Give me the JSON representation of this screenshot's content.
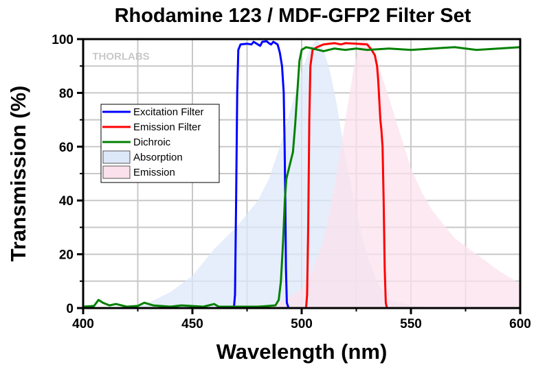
{
  "chart_data": {
    "type": "line",
    "title": "Rhodamine 123 / MDF-GFP2 Filter Set",
    "xlabel": "Wavelength (nm)",
    "ylabel": "Transmission (%)",
    "xlim": [
      400,
      600
    ],
    "ylim": [
      0,
      100
    ],
    "xticks": [
      400,
      450,
      500,
      550,
      600
    ],
    "yticks": [
      0,
      20,
      40,
      60,
      80,
      100
    ],
    "grid": true,
    "legend_position": "left",
    "watermark": "THORLABS",
    "series": [
      {
        "name": "Excitation Filter",
        "kind": "line",
        "color": "#0000ff",
        "points": [
          [
            400,
            0
          ],
          [
            469,
            0
          ],
          [
            469.5,
            5
          ],
          [
            470,
            40
          ],
          [
            470.5,
            80
          ],
          [
            471,
            96
          ],
          [
            472,
            98
          ],
          [
            475,
            98.3
          ],
          [
            477,
            98
          ],
          [
            478,
            99
          ],
          [
            480,
            98
          ],
          [
            481,
            97.5
          ],
          [
            482,
            99
          ],
          [
            484,
            99.2
          ],
          [
            485,
            98.5
          ],
          [
            486,
            98
          ],
          [
            487,
            99
          ],
          [
            489,
            98
          ],
          [
            490,
            95
          ],
          [
            491,
            90
          ],
          [
            491.8,
            80
          ],
          [
            492.2,
            60
          ],
          [
            492.5,
            40
          ],
          [
            492.8,
            15
          ],
          [
            493.2,
            2
          ],
          [
            494,
            0
          ],
          [
            600,
            0
          ]
        ]
      },
      {
        "name": "Emission Filter",
        "kind": "line",
        "color": "#ff0000",
        "points": [
          [
            400,
            0
          ],
          [
            502,
            0
          ],
          [
            502.5,
            5
          ],
          [
            503,
            30
          ],
          [
            503.5,
            70
          ],
          [
            504,
            90
          ],
          [
            505,
            96
          ],
          [
            507,
            97
          ],
          [
            510,
            98
          ],
          [
            515,
            98.5
          ],
          [
            518,
            98
          ],
          [
            520,
            98.5
          ],
          [
            525,
            98.3
          ],
          [
            530,
            98
          ],
          [
            532,
            96
          ],
          [
            533.5,
            94
          ],
          [
            534.5,
            90
          ],
          [
            535,
            85
          ],
          [
            536,
            70
          ],
          [
            536.5,
            66
          ],
          [
            537,
            60
          ],
          [
            537.5,
            40
          ],
          [
            538,
            15
          ],
          [
            538.5,
            2
          ],
          [
            539,
            0
          ],
          [
            600,
            0
          ]
        ]
      },
      {
        "name": "Dichroic",
        "kind": "line",
        "color": "#008000",
        "points": [
          [
            400,
            0.5
          ],
          [
            405,
            0.8
          ],
          [
            407,
            3
          ],
          [
            409,
            2
          ],
          [
            412,
            1
          ],
          [
            415,
            1.5
          ],
          [
            420,
            0.5
          ],
          [
            425,
            0.8
          ],
          [
            428,
            2
          ],
          [
            432,
            1
          ],
          [
            440,
            0.5
          ],
          [
            445,
            1
          ],
          [
            455,
            0.5
          ],
          [
            460,
            1.5
          ],
          [
            462,
            0.5
          ],
          [
            470,
            0.5
          ],
          [
            480,
            0.5
          ],
          [
            485,
            0.8
          ],
          [
            488,
            1
          ],
          [
            489.5,
            3
          ],
          [
            490.5,
            10
          ],
          [
            491.5,
            25
          ],
          [
            492.3,
            40
          ],
          [
            493,
            48
          ],
          [
            494.5,
            53
          ],
          [
            496,
            58
          ],
          [
            497,
            68
          ],
          [
            498,
            80
          ],
          [
            499,
            92
          ],
          [
            500,
            96
          ],
          [
            502,
            97
          ],
          [
            505,
            96.5
          ],
          [
            510,
            95.5
          ],
          [
            515,
            96.5
          ],
          [
            520,
            96
          ],
          [
            525,
            96.5
          ],
          [
            530,
            96
          ],
          [
            540,
            96.5
          ],
          [
            550,
            96
          ],
          [
            560,
            96.5
          ],
          [
            570,
            97
          ],
          [
            580,
            96
          ],
          [
            590,
            96.5
          ],
          [
            600,
            97
          ]
        ]
      },
      {
        "name": "Absorption",
        "kind": "area",
        "color": "#dce8f8",
        "points": [
          [
            400,
            0
          ],
          [
            420,
            0.5
          ],
          [
            430,
            2
          ],
          [
            440,
            6
          ],
          [
            450,
            12
          ],
          [
            460,
            22
          ],
          [
            470,
            30
          ],
          [
            475,
            35
          ],
          [
            480,
            40
          ],
          [
            485,
            48
          ],
          [
            490,
            60
          ],
          [
            495,
            74
          ],
          [
            500,
            88
          ],
          [
            504,
            97
          ],
          [
            507,
            100
          ],
          [
            510,
            96
          ],
          [
            513,
            88
          ],
          [
            516,
            76
          ],
          [
            520,
            56
          ],
          [
            525,
            36
          ],
          [
            530,
            19
          ],
          [
            535,
            9
          ],
          [
            540,
            3
          ],
          [
            550,
            1
          ],
          [
            560,
            0
          ]
        ]
      },
      {
        "name": "Emission",
        "kind": "area",
        "color": "#fbe1ec",
        "points": [
          [
            480,
            0
          ],
          [
            490,
            2
          ],
          [
            500,
            7
          ],
          [
            505,
            14
          ],
          [
            510,
            25
          ],
          [
            515,
            45
          ],
          [
            520,
            70
          ],
          [
            524,
            90
          ],
          [
            527,
            99
          ],
          [
            529,
            100
          ],
          [
            532,
            97
          ],
          [
            536,
            88
          ],
          [
            540,
            78
          ],
          [
            545,
            65
          ],
          [
            550,
            52
          ],
          [
            555,
            43
          ],
          [
            560,
            36
          ],
          [
            570,
            26
          ],
          [
            580,
            20
          ],
          [
            590,
            14
          ],
          [
            600,
            9
          ]
        ]
      }
    ]
  }
}
